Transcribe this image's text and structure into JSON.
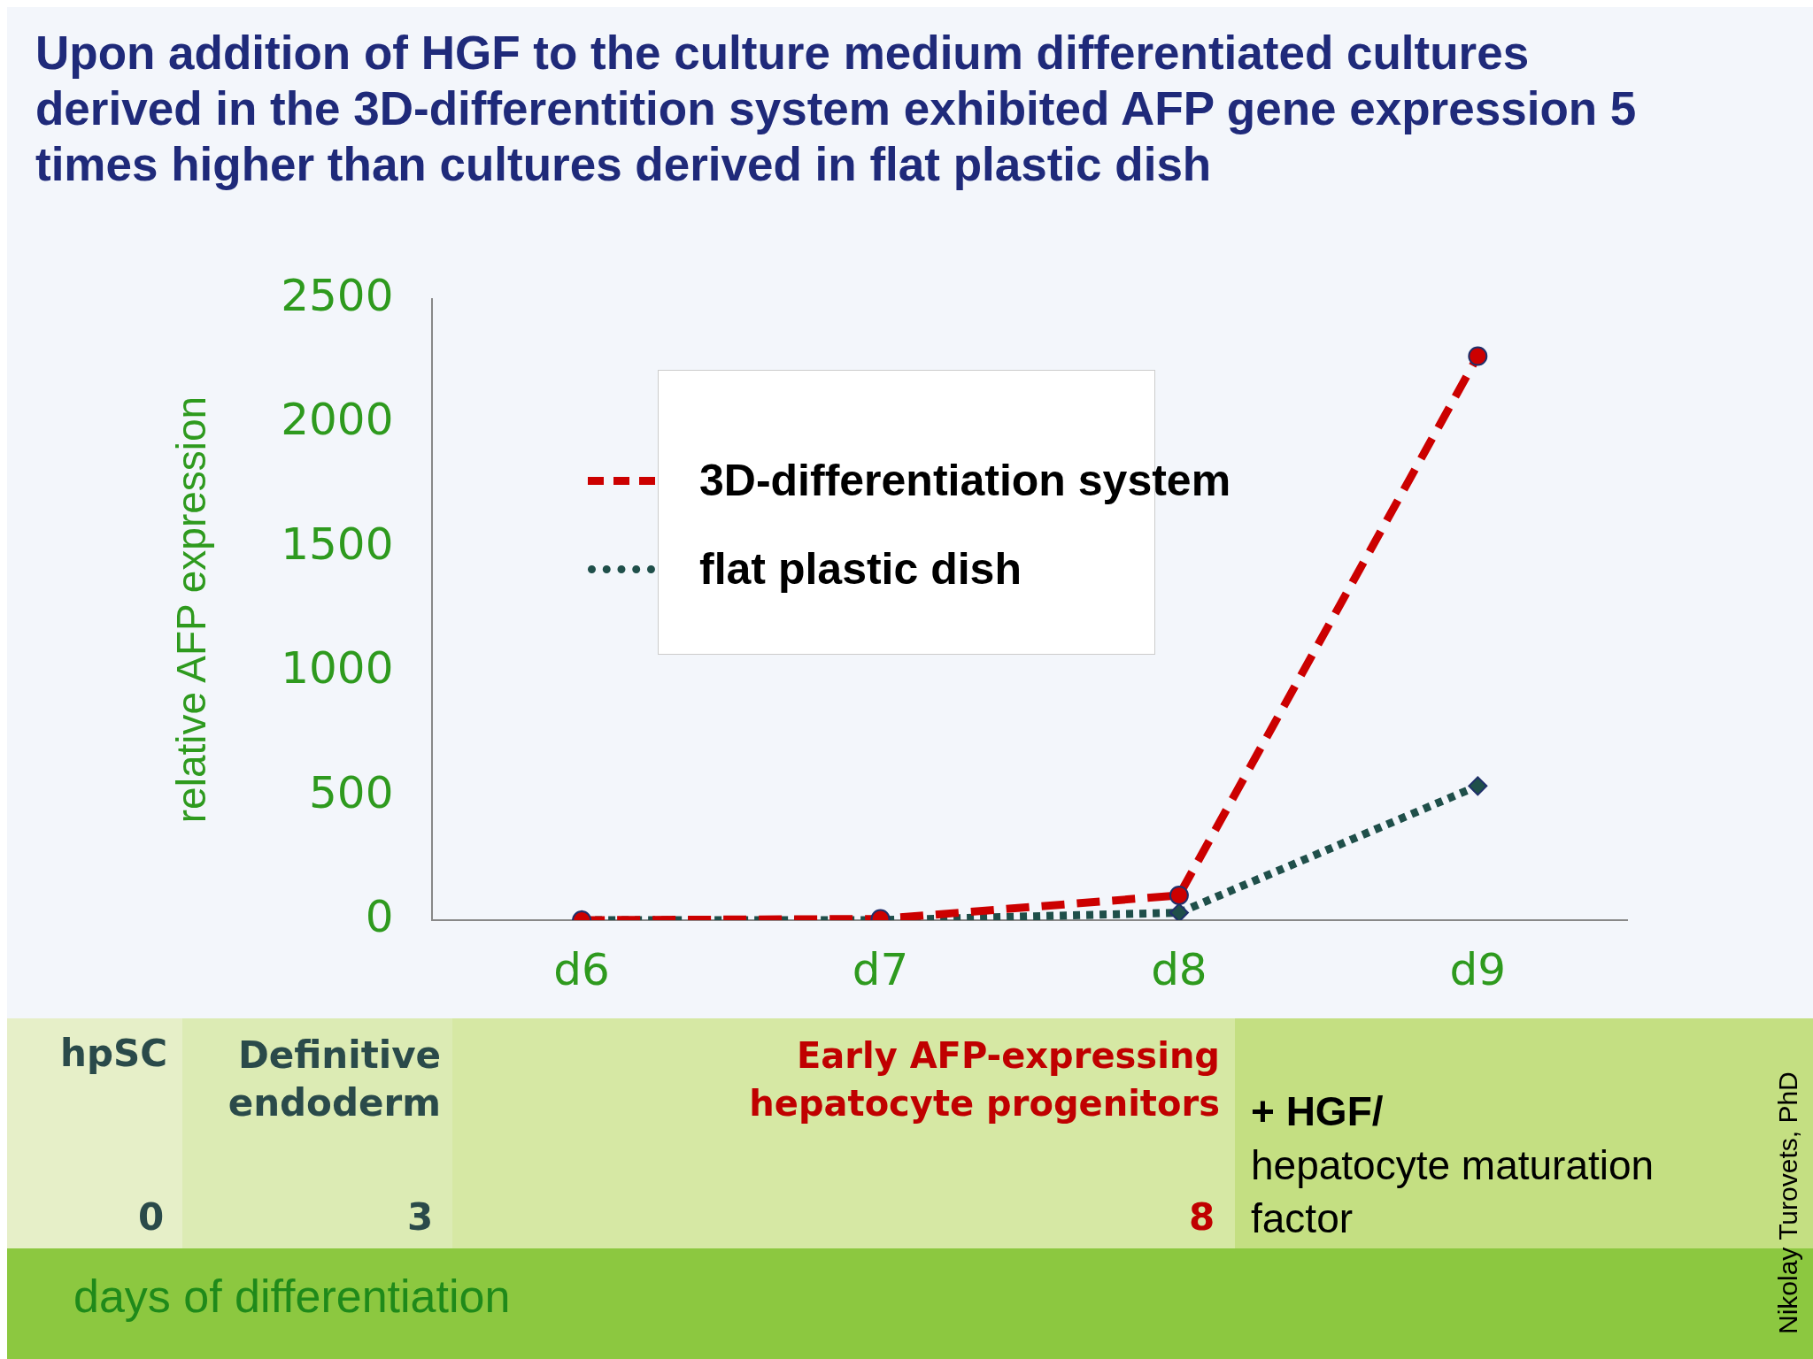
{
  "chart_data": {
    "type": "line",
    "title": "Upon addition of HGF to the culture medium differentiated cultures derived in  the 3D-differentition system exhibited AFP gene expression 5 times higher than cultures derived in flat plastic dish",
    "ylabel": "relative AFP expression",
    "categories": [
      "d6",
      "d7",
      "d8",
      "d9"
    ],
    "series": [
      {
        "name": "3D-differentiation system",
        "color": "#cc0000",
        "values": [
          0,
          5,
          100,
          2270
        ],
        "marker": "circle",
        "line_style": "dashed"
      },
      {
        "name": "flat plastic dish",
        "color": "#1f4f4a",
        "values": [
          0,
          0,
          30,
          540
        ],
        "marker": "diamond",
        "line_style": "dotted"
      }
    ],
    "ylim": [
      0,
      2500
    ],
    "yticks": [
      0,
      500,
      1000,
      1500,
      2000,
      2500
    ],
    "grid": false,
    "legend": "top",
    "annotations": [
      "hpSC",
      "0",
      "Definitive endoderm",
      "3",
      "Early AFP-expressing hepatocyte progenitors",
      "8",
      "+ HGF/",
      "hepatocyte maturation factor",
      "days of differentiation",
      "Nikolay Turovets, PhD"
    ]
  }
}
